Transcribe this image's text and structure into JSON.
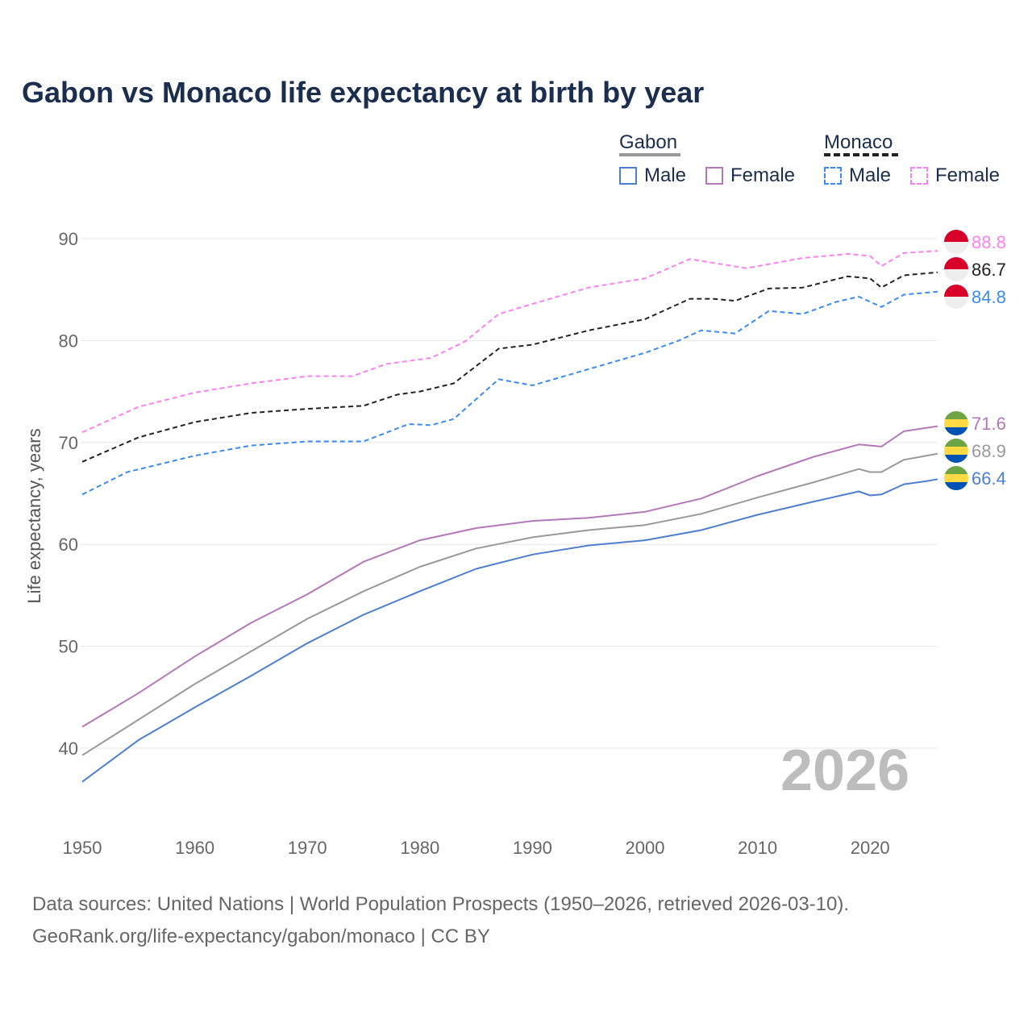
{
  "title": "Gabon vs Monaco life expectancy at birth by year",
  "legend": {
    "gabon": "Gabon",
    "monaco": "Monaco",
    "male": "Male",
    "female": "Female"
  },
  "watermark_year": "2026",
  "sources": [
    "Data sources: United Nations | World Population Prospects (1950–2026, retrieved 2026-03-10).",
    "GeoRank.org/life-expectancy/gabon/monaco | CC BY"
  ],
  "chart_data": {
    "type": "line",
    "title": "Gabon vs Monaco life expectancy at birth by year",
    "xlabel": "",
    "ylabel": "Life expectancy, years",
    "xlim": [
      1950,
      2026
    ],
    "ylim": [
      35,
      92
    ],
    "xticks": [
      1950,
      1960,
      1970,
      1980,
      1990,
      2000,
      2010,
      2020
    ],
    "yticks": [
      40,
      50,
      60,
      70,
      80,
      90
    ],
    "series": [
      {
        "name": "Monaco Female",
        "color": "#ff80f0",
        "dash": true,
        "flag": "monaco",
        "end_label": "88.8",
        "x": [
          1950,
          1955,
          1960,
          1965,
          1970,
          1974,
          1977,
          1981,
          1984,
          1987,
          1990,
          1995,
          2000,
          2004,
          2009,
          2014,
          2018,
          2020,
          2021,
          2023,
          2026
        ],
        "y": [
          71.0,
          73.5,
          74.9,
          75.8,
          76.5,
          76.5,
          77.7,
          78.3,
          79.9,
          82.6,
          83.6,
          85.2,
          86.1,
          88.0,
          87.1,
          88.1,
          88.5,
          88.3,
          87.3,
          88.6,
          88.8
        ]
      },
      {
        "name": "Monaco",
        "color": "#222222",
        "dash": true,
        "flag": "monaco",
        "end_label": "86.7",
        "x": [
          1950,
          1955,
          1960,
          1965,
          1970,
          1975,
          1978,
          1980,
          1983,
          1987,
          1990,
          1995,
          2000,
          2004,
          2006,
          2008,
          2011,
          2014,
          2018,
          2020,
          2021,
          2023,
          2026
        ],
        "y": [
          68.1,
          70.5,
          72.0,
          72.9,
          73.3,
          73.6,
          74.7,
          75.0,
          75.8,
          79.2,
          79.6,
          81.0,
          82.1,
          84.1,
          84.1,
          83.9,
          85.1,
          85.2,
          86.3,
          86.1,
          85.2,
          86.4,
          86.7
        ]
      },
      {
        "name": "Monaco Male",
        "color": "#3b8af5",
        "dash": true,
        "flag": "monaco",
        "end_label": "84.8",
        "x": [
          1950,
          1954,
          1960,
          1965,
          1970,
          1975,
          1979,
          1981,
          1983,
          1987,
          1990,
          1995,
          2000,
          2003,
          2005,
          2008,
          2011,
          2014,
          2017,
          2019,
          2021,
          2023,
          2026
        ],
        "y": [
          64.9,
          67.1,
          68.7,
          69.7,
          70.1,
          70.1,
          71.8,
          71.7,
          72.3,
          76.2,
          75.6,
          77.2,
          78.8,
          80.0,
          81.0,
          80.7,
          82.9,
          82.6,
          83.8,
          84.3,
          83.3,
          84.5,
          84.8
        ]
      },
      {
        "name": "Gabon Female",
        "color": "#b478b8",
        "dash": false,
        "flag": "gabon",
        "end_label": "71.6",
        "x": [
          1950,
          1955,
          1960,
          1965,
          1970,
          1975,
          1980,
          1985,
          1990,
          1995,
          2000,
          2005,
          2010,
          2015,
          2019,
          2021,
          2023,
          2026
        ],
        "y": [
          42.1,
          45.4,
          49.0,
          52.3,
          55.1,
          58.3,
          60.4,
          61.6,
          62.3,
          62.6,
          63.2,
          64.5,
          66.7,
          68.6,
          69.8,
          69.6,
          71.1,
          71.6
        ]
      },
      {
        "name": "Gabon",
        "color": "#999999",
        "dash": false,
        "flag": "gabon",
        "end_label": "68.9",
        "x": [
          1950,
          1955,
          1960,
          1965,
          1970,
          1975,
          1980,
          1985,
          1990,
          1995,
          2000,
          2005,
          2010,
          2015,
          2019,
          2020,
          2021,
          2023,
          2026
        ],
        "y": [
          39.3,
          42.8,
          46.3,
          49.5,
          52.7,
          55.4,
          57.8,
          59.6,
          60.7,
          61.4,
          61.9,
          63.0,
          64.6,
          66.1,
          67.4,
          67.1,
          67.1,
          68.3,
          68.9
        ]
      },
      {
        "name": "Gabon Male",
        "color": "#4e7fcf",
        "dash": false,
        "flag": "gabon",
        "end_label": "66.4",
        "x": [
          1950,
          1955,
          1960,
          1965,
          1970,
          1975,
          1980,
          1985,
          1990,
          1995,
          2000,
          2005,
          2010,
          2015,
          2019,
          2020,
          2021,
          2023,
          2025,
          2026
        ],
        "y": [
          36.7,
          40.8,
          44.0,
          47.1,
          50.3,
          53.1,
          55.4,
          57.6,
          59.0,
          59.9,
          60.4,
          61.4,
          62.9,
          64.2,
          65.2,
          64.8,
          64.9,
          65.9,
          66.2,
          66.4
        ]
      }
    ]
  }
}
